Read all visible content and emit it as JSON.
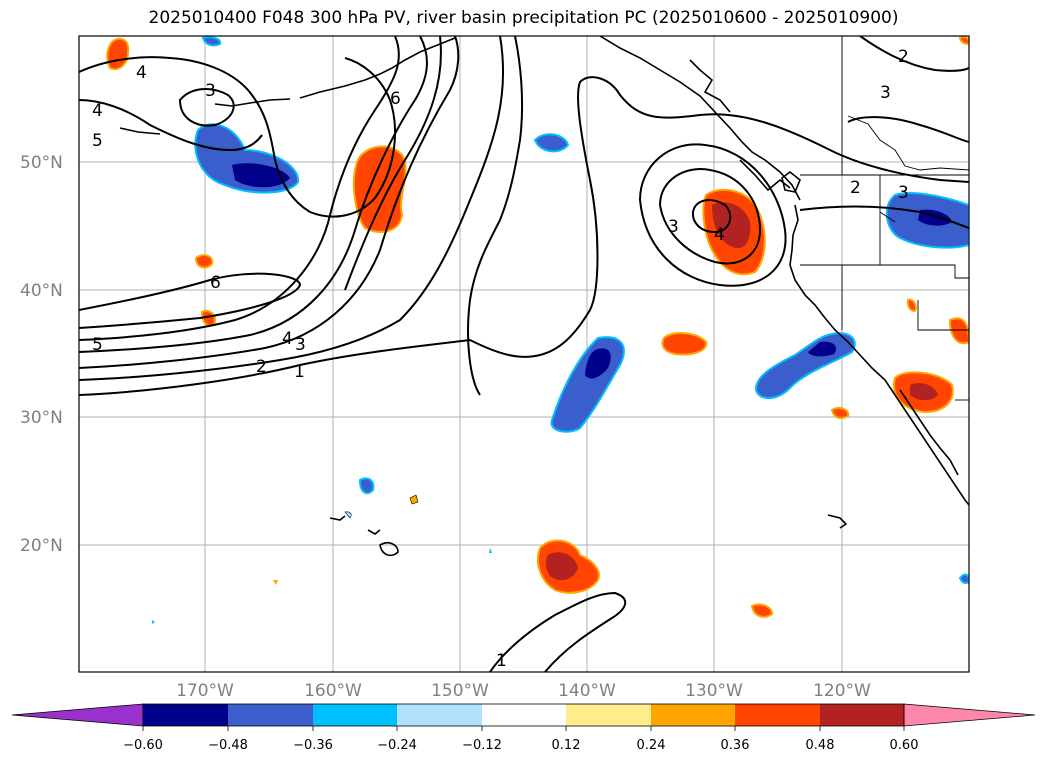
{
  "title": "2025010400 F048 300 hPa PV, river basin precipitation PC (2025010600 - 2025010900)",
  "map": {
    "lat_labels": [
      "50°N",
      "40°N",
      "30°N",
      "20°N"
    ],
    "lon_labels": [
      "170°W",
      "160°W",
      "150°W",
      "140°W",
      "130°W",
      "120°W"
    ],
    "contour_labels": [
      "4",
      "3",
      "4",
      "5",
      "6",
      "6",
      "4",
      "5",
      "3",
      "2",
      "1",
      "3",
      "4",
      "2",
      "3",
      "2",
      "3",
      "1"
    ],
    "colors": {
      "gridline": "#b0b0b0",
      "coast": "#000000",
      "pv_contour": "#000000"
    }
  },
  "colorbar": {
    "ticks": [
      "−0.60",
      "−0.48",
      "−0.36",
      "−0.24",
      "−0.12",
      "0.12",
      "0.24",
      "0.36",
      "0.48",
      "0.60"
    ],
    "colors": [
      "#9932cc",
      "#00008b",
      "#3a5fcd",
      "#00bfff",
      "#b0e2ff",
      "#ffffff",
      "#ffec8b",
      "#ffa500",
      "#ff4500",
      "#b22222",
      "#ff88aa"
    ]
  }
}
